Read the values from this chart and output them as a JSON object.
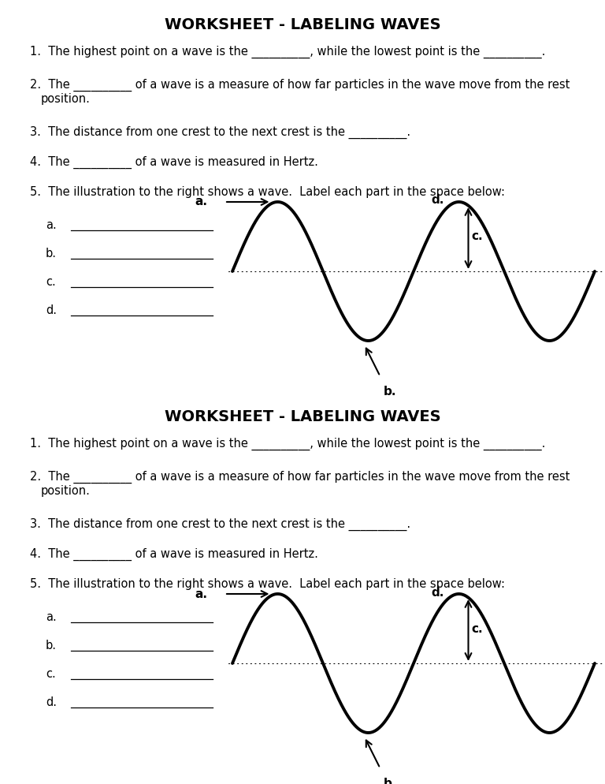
{
  "title": "WORKSHEET - LABELING WAVES",
  "bg": "#ffffff",
  "q1": "1.  The highest point on a wave is the __________, while the lowest point is the __________.",
  "q2a": "2.  The __________ of a wave is a measure of how far particles in the wave move from the rest",
  "q2b": "     position.",
  "q3": "3.  The distance from one crest to the next crest is the __________.",
  "q4": "4.  The __________ of a wave is measured in Hertz.",
  "q5": "5.  The illustration to the right shows a wave.  Label each part in the space below:",
  "labels": [
    "a.",
    "b.",
    "c.",
    "d."
  ],
  "font_size_title": 14,
  "font_size_body": 10.5,
  "font_size_wave_label": 11
}
